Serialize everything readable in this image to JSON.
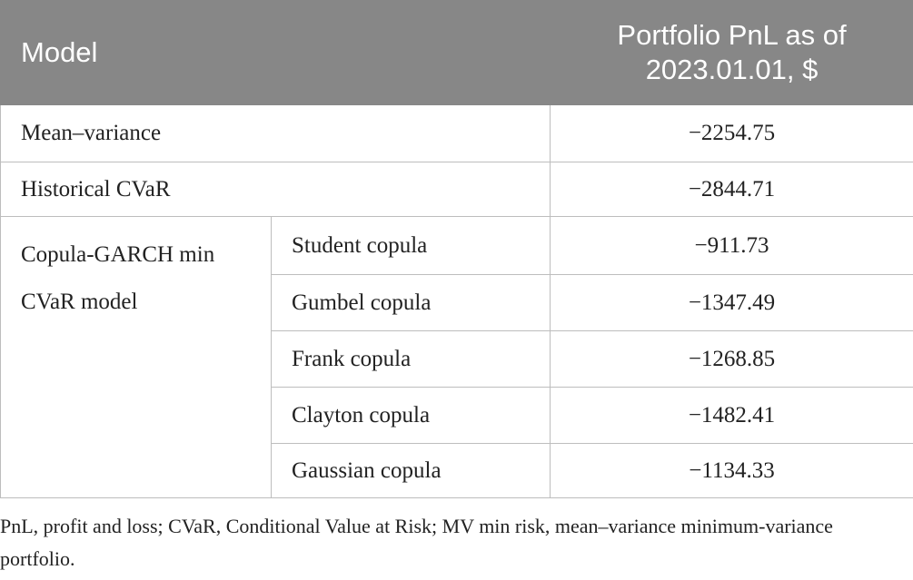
{
  "table": {
    "header": [
      "Model",
      "Portfolio PnL as of 2023.01.01, $"
    ],
    "rows": [
      [
        "Mean–variance",
        "−2254.75"
      ],
      [
        "Historical CVaR",
        "−2844.71"
      ]
    ],
    "group": {
      "label": "Copula-GARCH min CVaR model",
      "rows": [
        [
          "Student copula",
          "−911.73"
        ],
        [
          "Gumbel copula",
          "−1347.49"
        ],
        [
          "Frank copula",
          "−1268.85"
        ],
        [
          "Clayton copula",
          "−1482.41"
        ],
        [
          "Gaussian copula",
          "−1134.33"
        ]
      ]
    }
  },
  "footnote": "PnL, profit and loss; CVaR, Conditional Value at Risk; MV min risk, mean–variance minimum-variance portfolio."
}
